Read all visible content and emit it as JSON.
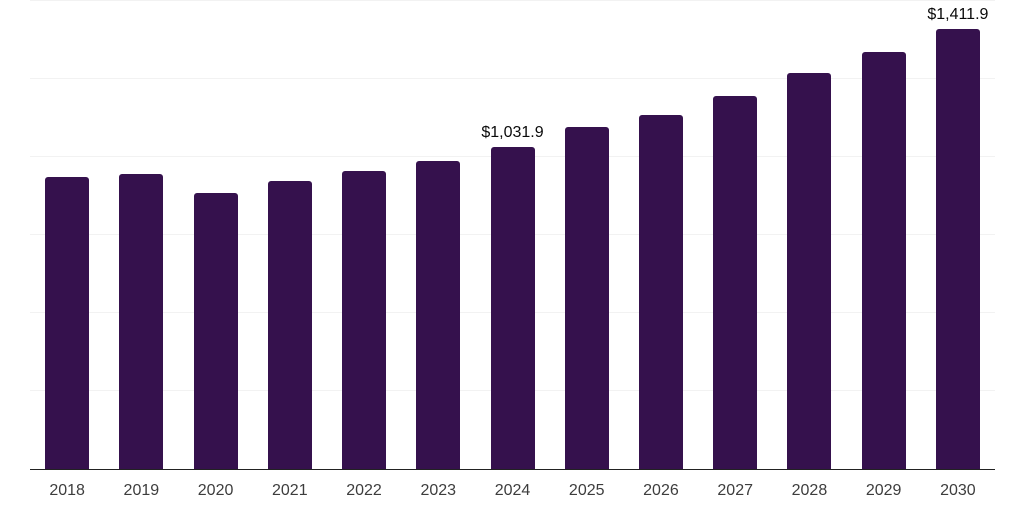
{
  "chart_data": {
    "type": "bar",
    "title": "",
    "xlabel": "",
    "ylabel": "",
    "categories": [
      "2018",
      "2019",
      "2020",
      "2021",
      "2022",
      "2023",
      "2024",
      "2025",
      "2026",
      "2027",
      "2028",
      "2029",
      "2030"
    ],
    "values": [
      935.6,
      946.8,
      884.4,
      922.8,
      954.6,
      986.6,
      1031.9,
      1095.2,
      1133.5,
      1194.2,
      1269.2,
      1337.9,
      1411.9
    ],
    "data_labels": [
      "",
      "",
      "",
      "",
      "",
      "",
      "$1,031.9",
      "",
      "",
      "",
      "",
      "",
      "$1,411.9"
    ],
    "ylim": [
      0,
      1500
    ],
    "gridline_step": 250,
    "grid": "horizontal",
    "legend_position": "none",
    "y_tick_labels_visible": false,
    "colors": {
      "bar": "#35114D",
      "gridline": "#f2f2f2",
      "axis_line": "#222222",
      "data_label_text": "#0a0a0a",
      "x_tick_text": "#3d3d3d",
      "background": "#ffffff"
    }
  }
}
